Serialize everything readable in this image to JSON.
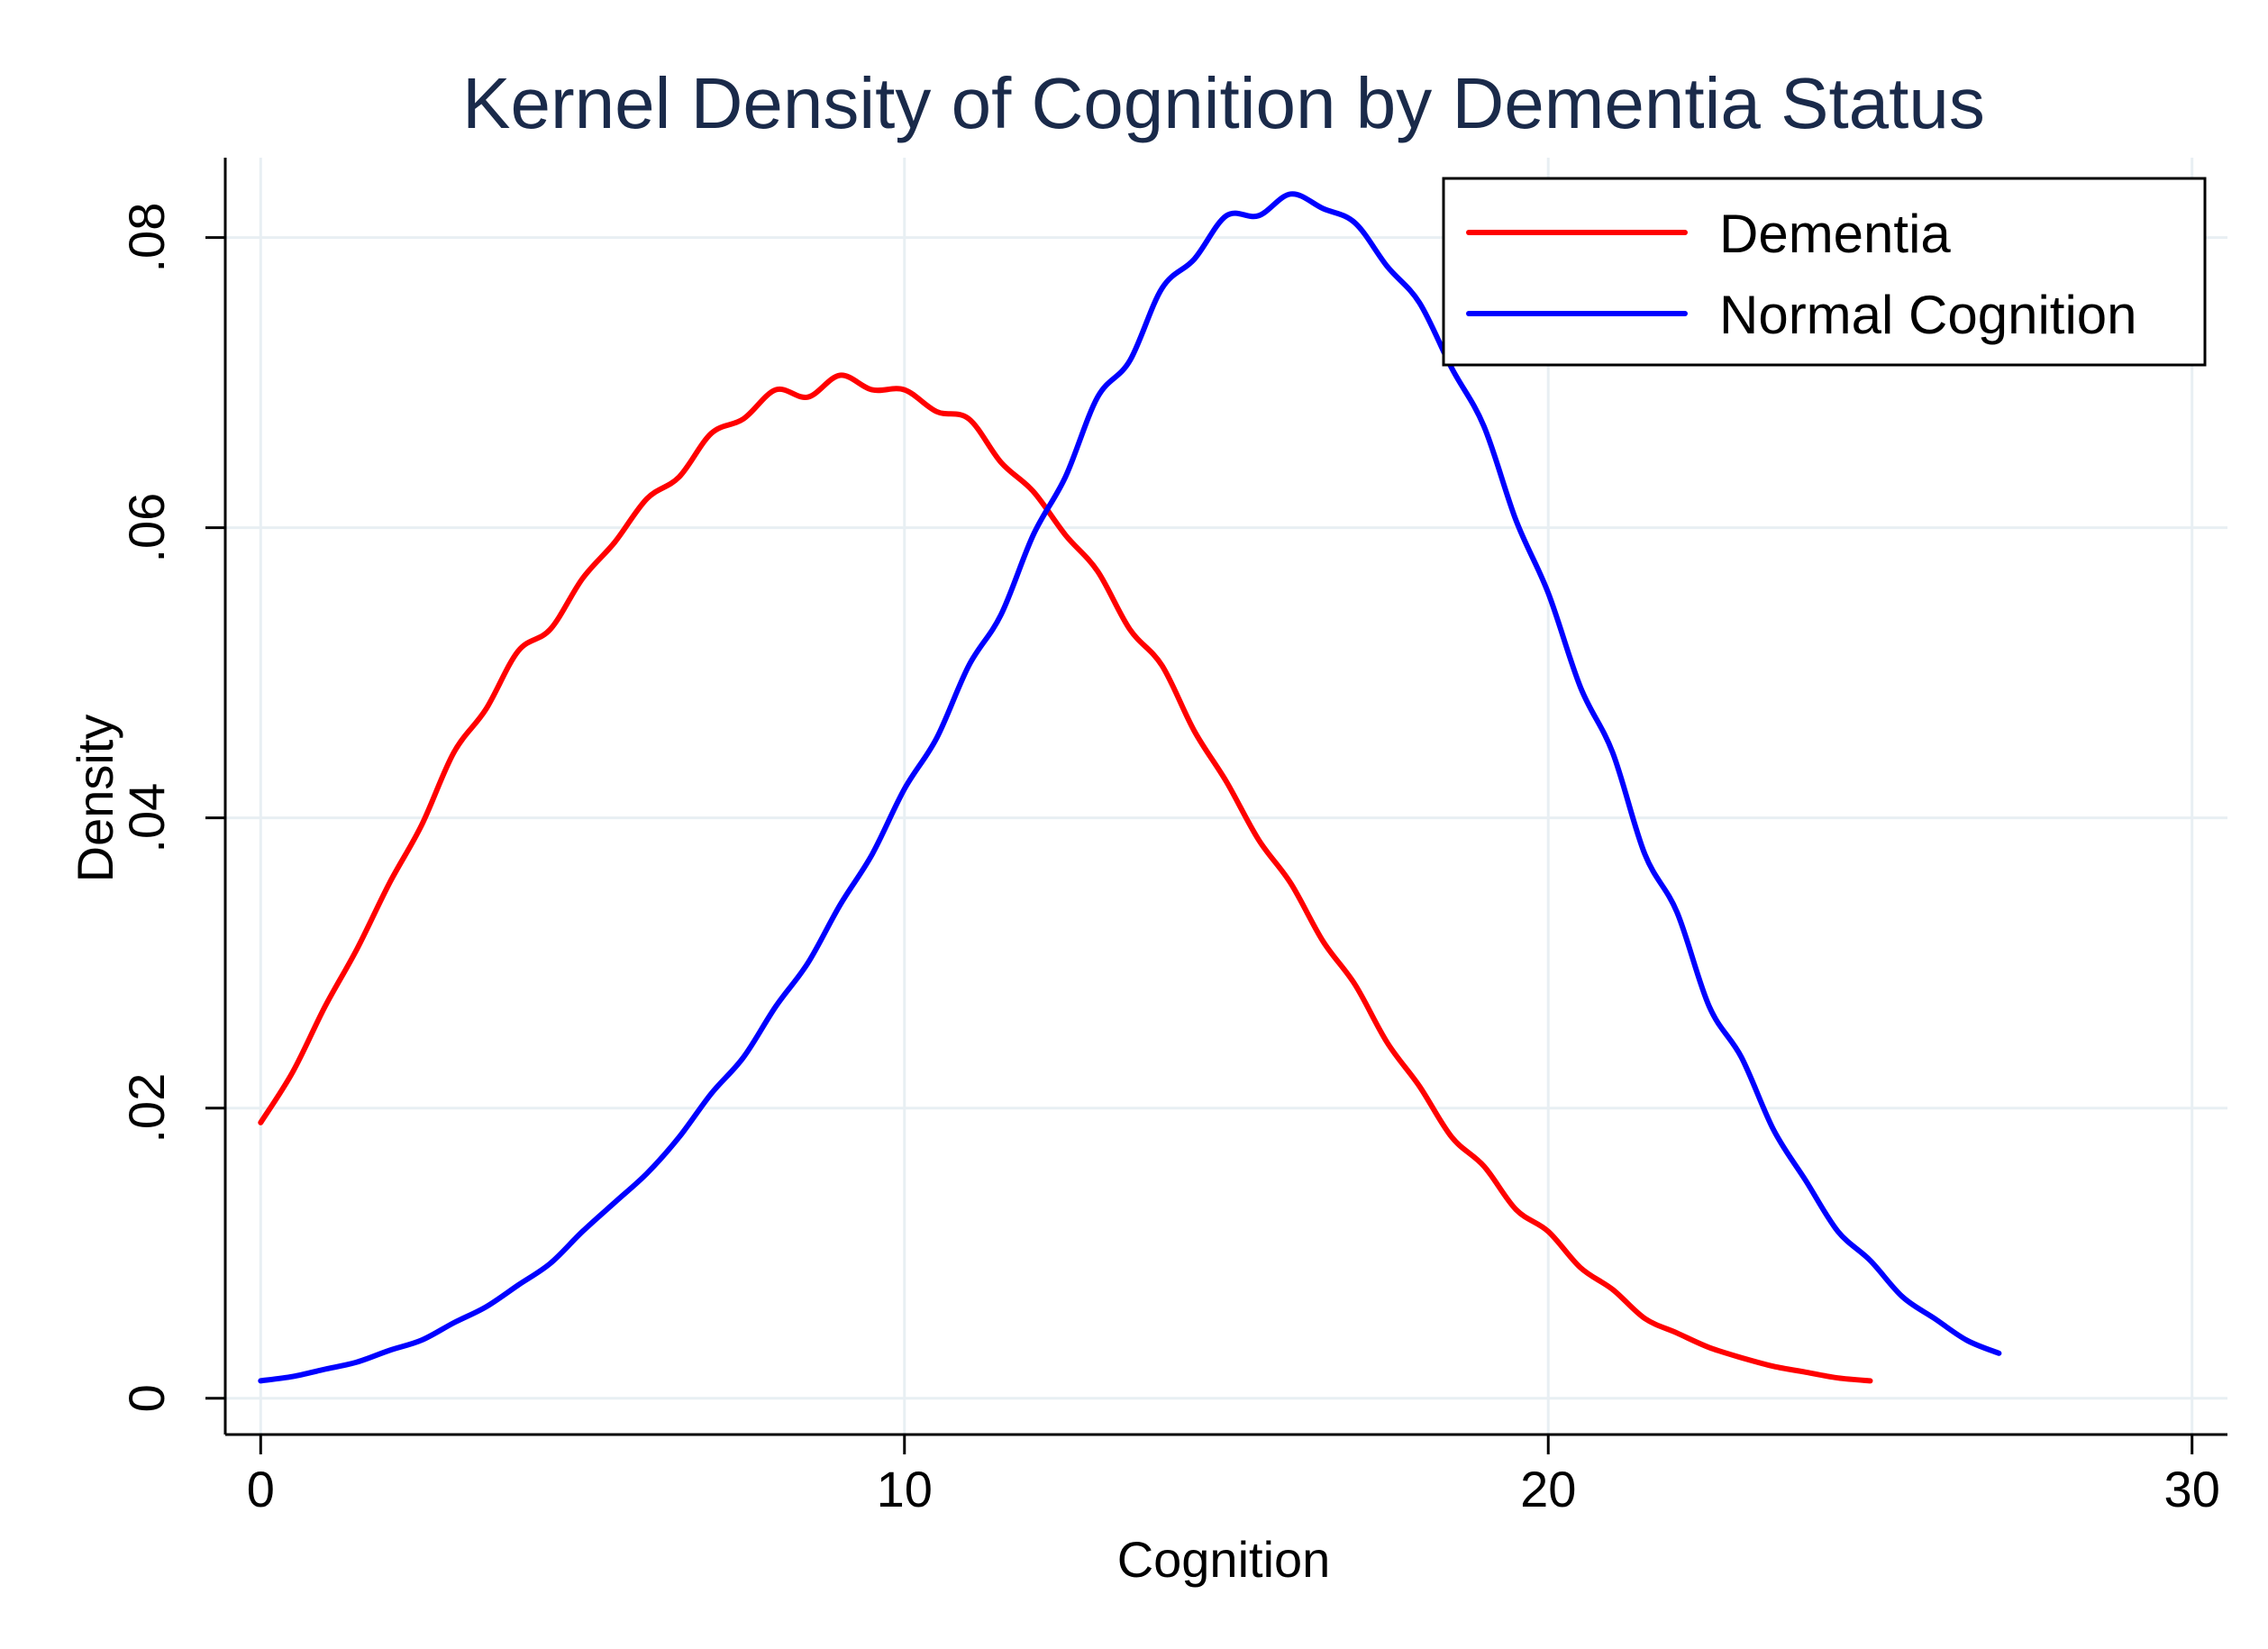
{
  "chart_data": {
    "type": "line",
    "title": "Kernel Density of Cognition by Dementia Status",
    "xlabel": "Cognition",
    "ylabel": "Density",
    "xlim": [
      -0.55,
      30.55
    ],
    "ylim": [
      -0.0025,
      0.0855
    ],
    "xticks": [
      0,
      10,
      20,
      30
    ],
    "xtick_labels": [
      "0",
      "10",
      "20",
      "30"
    ],
    "yticks": [
      0,
      0.02,
      0.04,
      0.06,
      0.08
    ],
    "ytick_labels": [
      "0",
      ".02",
      ".04",
      ".06",
      ".08"
    ],
    "grid": true,
    "legend_position": "top-right",
    "series": [
      {
        "name": "Dementia",
        "color": "#ff0000",
        "x": [
          0,
          0.5,
          1,
          1.5,
          2,
          2.5,
          3,
          3.5,
          4,
          4.5,
          5,
          5.5,
          6,
          6.5,
          7,
          7.5,
          8,
          8.5,
          9,
          9.5,
          10,
          10.5,
          11,
          11.5,
          12,
          12.5,
          13,
          13.5,
          14,
          14.5,
          15,
          15.5,
          16,
          16.5,
          17,
          17.5,
          18,
          18.5,
          19,
          19.5,
          20,
          20.5,
          21,
          21.5,
          22,
          22.5,
          23,
          23.5,
          24,
          24.5,
          25
        ],
        "y": [
          0.019,
          0.0225,
          0.027,
          0.031,
          0.0355,
          0.0395,
          0.0445,
          0.0475,
          0.0515,
          0.053,
          0.0565,
          0.059,
          0.062,
          0.0635,
          0.0665,
          0.0675,
          0.0695,
          0.069,
          0.0705,
          0.0695,
          0.0695,
          0.068,
          0.0675,
          0.0645,
          0.0625,
          0.0595,
          0.057,
          0.053,
          0.0505,
          0.046,
          0.0425,
          0.0385,
          0.0355,
          0.0315,
          0.0285,
          0.0245,
          0.0215,
          0.018,
          0.016,
          0.013,
          0.0115,
          0.009,
          0.0075,
          0.0055,
          0.0045,
          0.0035,
          0.0028,
          0.0022,
          0.0018,
          0.0014,
          0.0012
        ]
      },
      {
        "name": "Normal Cognition",
        "color": "#0000ff",
        "x": [
          0,
          0.5,
          1,
          1.5,
          2,
          2.5,
          3,
          3.5,
          4,
          4.5,
          5,
          5.5,
          6,
          6.5,
          7,
          7.5,
          8,
          8.5,
          9,
          9.5,
          10,
          10.5,
          11,
          11.5,
          12,
          12.5,
          13,
          13.5,
          14,
          14.5,
          15,
          15.5,
          16,
          16.5,
          17,
          17.5,
          18,
          18.5,
          19,
          19.5,
          20,
          20.5,
          21,
          21.5,
          22,
          22.5,
          23,
          23.5,
          24,
          24.5,
          25,
          25.5,
          26,
          26.5,
          27
        ],
        "y": [
          0.0012,
          0.0015,
          0.002,
          0.0025,
          0.0033,
          0.004,
          0.0052,
          0.0063,
          0.0078,
          0.0093,
          0.0115,
          0.0135,
          0.0155,
          0.018,
          0.021,
          0.0235,
          0.027,
          0.03,
          0.034,
          0.0375,
          0.042,
          0.0455,
          0.0505,
          0.054,
          0.0595,
          0.0635,
          0.069,
          0.0715,
          0.0765,
          0.0785,
          0.0815,
          0.0815,
          0.083,
          0.082,
          0.081,
          0.078,
          0.0755,
          0.071,
          0.067,
          0.0605,
          0.0555,
          0.049,
          0.0445,
          0.0375,
          0.0335,
          0.027,
          0.0235,
          0.0185,
          0.015,
          0.0115,
          0.0095,
          0.007,
          0.0055,
          0.004,
          0.0031
        ]
      }
    ]
  }
}
